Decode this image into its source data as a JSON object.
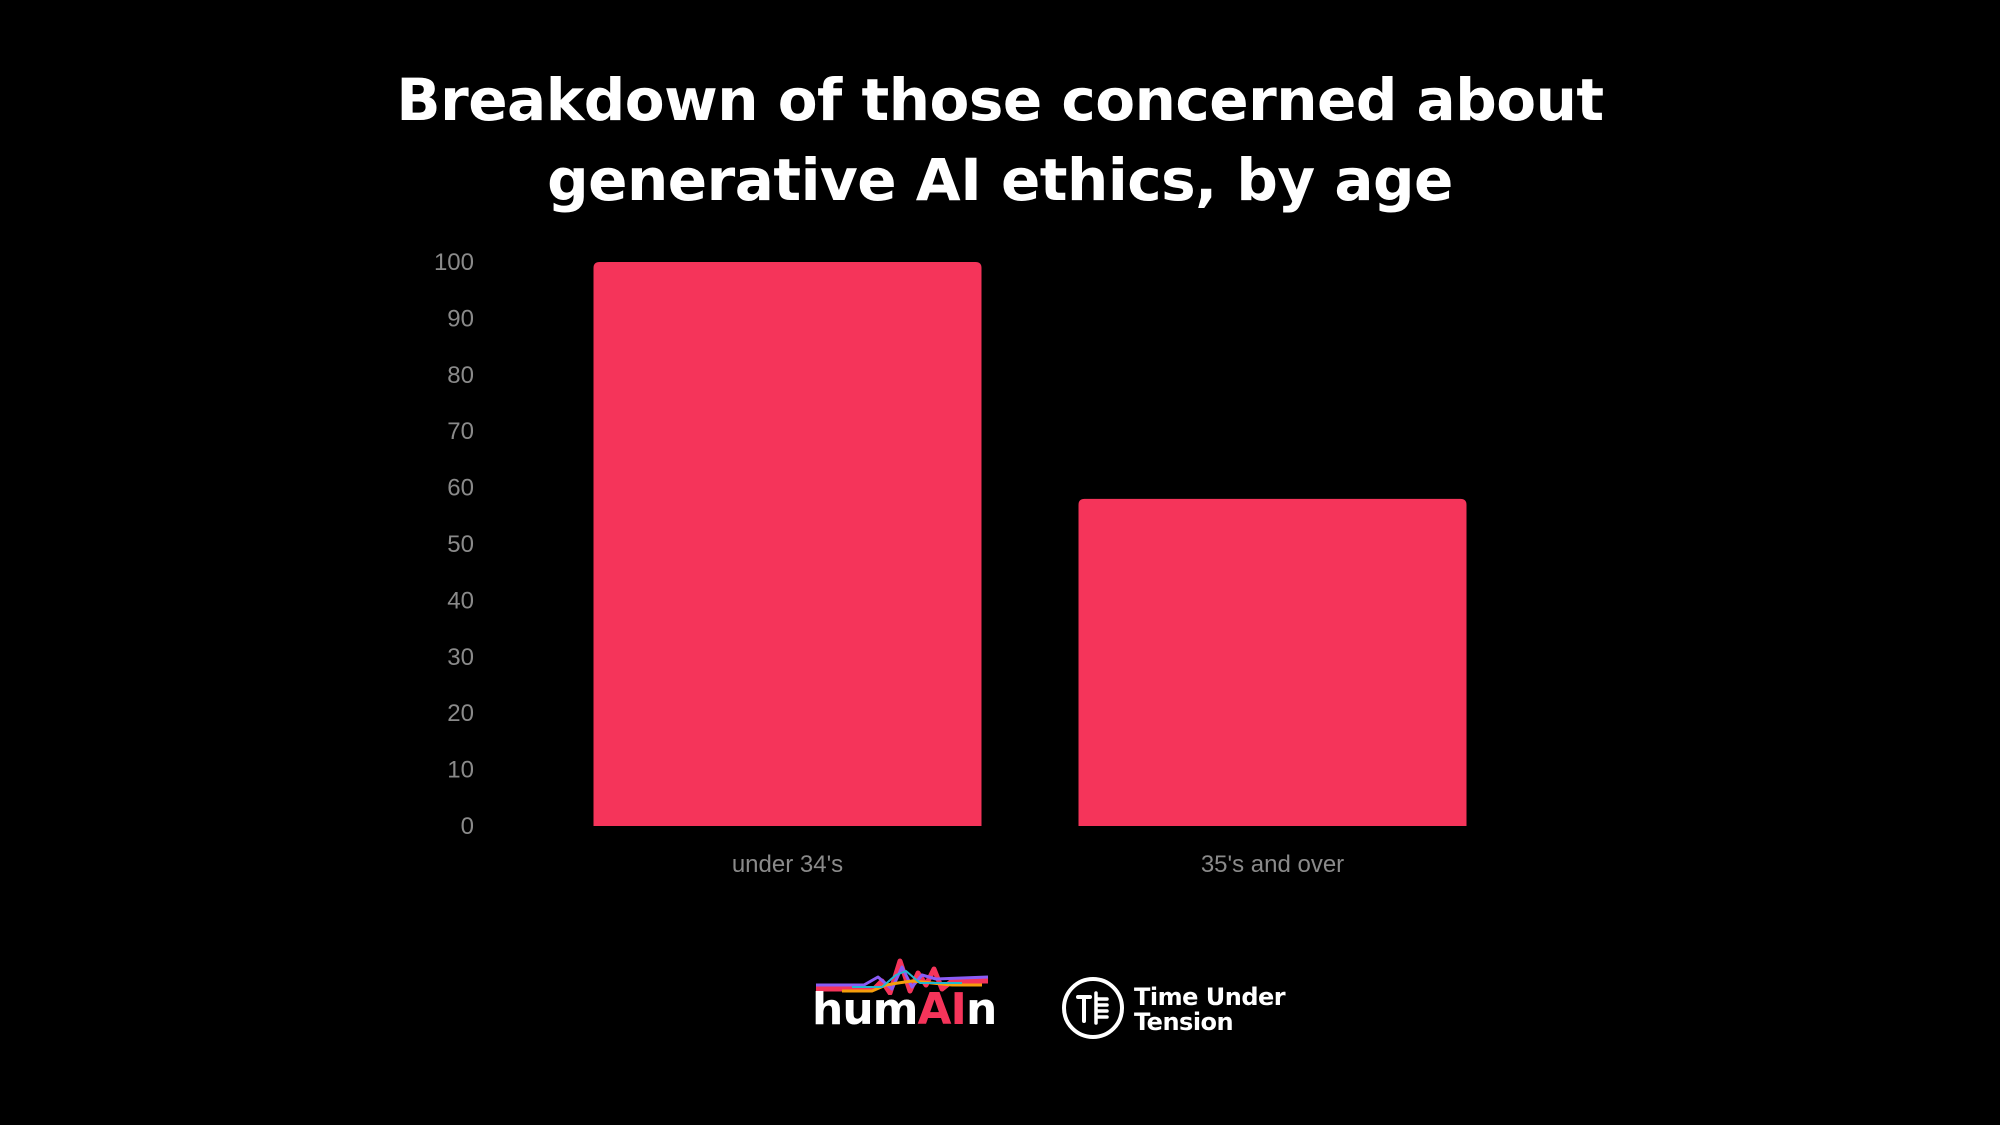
{
  "chart_data": {
    "type": "bar",
    "title_lines": [
      "Breakdown of those concerned about",
      "generative AI ethics, by age"
    ],
    "categories": [
      "under 34's",
      "35's and over"
    ],
    "values": [
      100,
      58
    ],
    "ylim": [
      0,
      100
    ],
    "yticks": [
      "0",
      "10",
      "20",
      "30",
      "40",
      "50",
      "60",
      "70",
      "80",
      "90",
      "100"
    ],
    "xlabel": "",
    "ylabel": "",
    "grid": false,
    "bar_color": "#f5345a",
    "background": "#000000",
    "tick_color": "#8a8a8a"
  },
  "logos": {
    "humain": {
      "prefix": "hum",
      "highlight": "AI",
      "suffix": "n",
      "accent": "#f5345a"
    },
    "time_under_tension": {
      "line1": "Time Under",
      "line2": "Tension"
    }
  }
}
